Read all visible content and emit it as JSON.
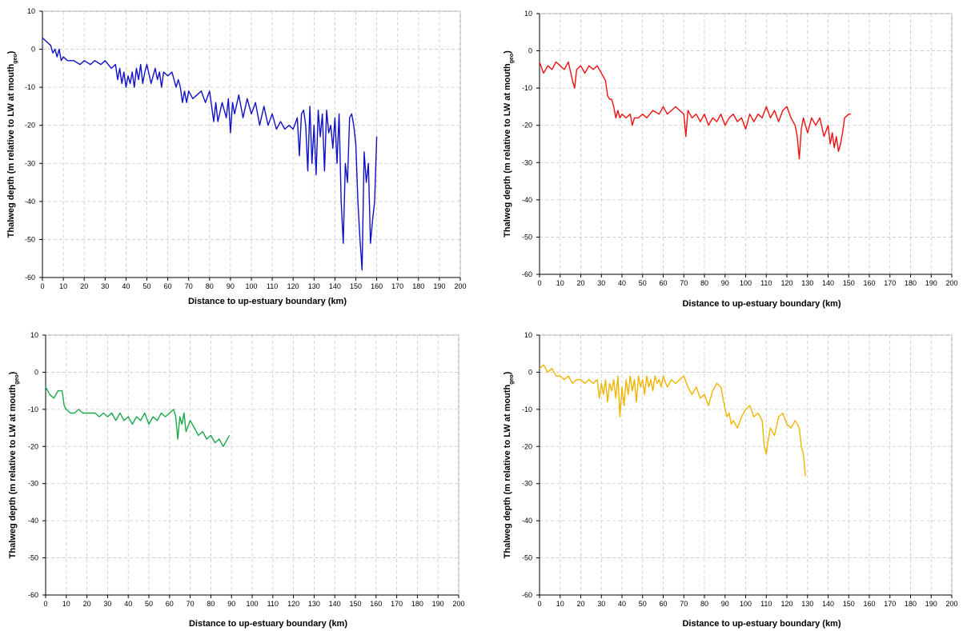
{
  "chart_data": [
    {
      "type": "line",
      "xlabel": "Distance to up-estuary  boundary (km)",
      "ylabel": "Thalweg depth (m relative to LW at mouth",
      "ylabel_sub": "geo",
      "xlim": [
        0,
        200
      ],
      "ylim": [
        -60,
        10
      ],
      "xticks": [
        "0",
        "10",
        "20",
        "30",
        "40",
        "50",
        "60",
        "70",
        "80",
        "90",
        "100",
        "110",
        "120",
        "130",
        "140",
        "150",
        "160",
        "170",
        "180",
        "190",
        "200"
      ],
      "yticks": [
        "10",
        "0",
        "-10",
        "-20",
        "-30",
        "-40",
        "-50",
        "-60"
      ],
      "grid": true,
      "color": "#1010c8",
      "series": [
        {
          "x": [
            0,
            2,
            4,
            5,
            6,
            7,
            8,
            9,
            10,
            12,
            15,
            18,
            20,
            23,
            25,
            28,
            30,
            33,
            35,
            36,
            37,
            38,
            39,
            40,
            41,
            42,
            43,
            44,
            45,
            46,
            47,
            48,
            49,
            50,
            52,
            54,
            55,
            56,
            57,
            58,
            60,
            62,
            64,
            65,
            66,
            67,
            68,
            69,
            70,
            72,
            74,
            76,
            78,
            80,
            81,
            82,
            83,
            84,
            86,
            88,
            89,
            90,
            91,
            92,
            94,
            96,
            98,
            100,
            102,
            104,
            106,
            108,
            110,
            112,
            114,
            116,
            118,
            120,
            122,
            123,
            124,
            125,
            126,
            127,
            128,
            129,
            130,
            131,
            132,
            133,
            134,
            135,
            136,
            137,
            138,
            139,
            140,
            141,
            142,
            143,
            144,
            145,
            146,
            147,
            148,
            149,
            150,
            151,
            152,
            153,
            154,
            155,
            156,
            157,
            158,
            159,
            160
          ],
          "y": [
            3,
            2,
            1,
            -1,
            0,
            -2,
            0,
            -3,
            -2,
            -3,
            -3,
            -4,
            -3,
            -4,
            -3,
            -4,
            -3,
            -5,
            -4,
            -8,
            -5,
            -9,
            -6,
            -10,
            -7,
            -9,
            -6,
            -10,
            -5,
            -8,
            -4,
            -9,
            -6,
            -4,
            -9,
            -5,
            -8,
            -6,
            -10,
            -6,
            -7,
            -6,
            -10,
            -8,
            -10,
            -14,
            -11,
            -14,
            -11,
            -13,
            -12,
            -11,
            -14,
            -11,
            -15,
            -19,
            -14,
            -19,
            -14,
            -18,
            -13,
            -22,
            -14,
            -17,
            -12,
            -18,
            -13,
            -17,
            -14,
            -20,
            -15,
            -20,
            -17,
            -21,
            -19,
            -21,
            -20,
            -21,
            -18,
            -28,
            -17,
            -16,
            -20,
            -32,
            -15,
            -30,
            -20,
            -33,
            -16,
            -23,
            -17,
            -32,
            -16,
            -22,
            -20,
            -26,
            -18,
            -30,
            -17,
            -40,
            -51,
            -30,
            -35,
            -18,
            -17,
            -20,
            -25,
            -40,
            -50,
            -58,
            -27,
            -35,
            -30,
            -51,
            -45,
            -40,
            -23
          ]
        }
      ]
    },
    {
      "type": "line",
      "xlabel": "Distance to up-estuary boundary (km)",
      "ylabel": "Thalweg depth (m relative to LW at mouth",
      "ylabel_sub": "geo",
      "xlim": [
        0,
        200
      ],
      "ylim": [
        -60,
        10
      ],
      "xticks": [
        "0",
        "10",
        "20",
        "30",
        "40",
        "50",
        "60",
        "70",
        "80",
        "90",
        "100",
        "110",
        "120",
        "130",
        "140",
        "150",
        "160",
        "170",
        "180",
        "190",
        "200"
      ],
      "yticks": [
        "10",
        "0",
        "-10",
        "-20",
        "-30",
        "-40",
        "-50",
        "-60"
      ],
      "grid": true,
      "color": "#ee1111",
      "series": [
        {
          "x": [
            0,
            2,
            4,
            6,
            8,
            10,
            12,
            14,
            16,
            17,
            18,
            20,
            22,
            24,
            26,
            28,
            30,
            32,
            33,
            34,
            35,
            36,
            37,
            38,
            39,
            40,
            42,
            44,
            45,
            46,
            48,
            50,
            52,
            55,
            58,
            60,
            62,
            64,
            66,
            68,
            70,
            71,
            72,
            74,
            76,
            78,
            80,
            82,
            84,
            86,
            88,
            90,
            92,
            94,
            96,
            98,
            100,
            102,
            104,
            106,
            108,
            110,
            112,
            114,
            116,
            118,
            120,
            122,
            124,
            125,
            126,
            127,
            128,
            130,
            132,
            134,
            136,
            138,
            140,
            141,
            142,
            143,
            144,
            145,
            146,
            147,
            148,
            150,
            151
          ],
          "y": [
            -3,
            -6,
            -4,
            -5,
            -3,
            -4,
            -5,
            -3,
            -8,
            -10,
            -5,
            -4,
            -6,
            -4,
            -5,
            -4,
            -6,
            -8,
            -12,
            -13,
            -13,
            -15,
            -18,
            -16,
            -18,
            -17,
            -18,
            -17,
            -20,
            -18,
            -18,
            -17,
            -18,
            -16,
            -17,
            -15,
            -17,
            -16,
            -15,
            -16,
            -17,
            -23,
            -16,
            -18,
            -17,
            -19,
            -17,
            -20,
            -18,
            -19,
            -17,
            -20,
            -18,
            -17,
            -19,
            -18,
            -21,
            -17,
            -19,
            -17,
            -18,
            -15,
            -18,
            -16,
            -19,
            -16,
            -15,
            -18,
            -20,
            -23,
            -29,
            -21,
            -18,
            -22,
            -18,
            -20,
            -18,
            -23,
            -20,
            -25,
            -22,
            -26,
            -23,
            -27,
            -25,
            -22,
            -18,
            -17,
            -17
          ]
        }
      ]
    },
    {
      "type": "line",
      "xlabel": "Distance to up-estuary boundary (km)",
      "ylabel": "Thalweg depth (m relative to LW at mouth",
      "ylabel_sub": "geo",
      "xlim": [
        0,
        200
      ],
      "ylim": [
        -60,
        10
      ],
      "xticks": [
        "0",
        "10",
        "20",
        "30",
        "40",
        "50",
        "60",
        "70",
        "80",
        "90",
        "100",
        "110",
        "120",
        "130",
        "140",
        "150",
        "160",
        "170",
        "180",
        "190",
        "200"
      ],
      "yticks": [
        "10",
        "0",
        "-10",
        "-20",
        "-30",
        "-40",
        "-50",
        "-60"
      ],
      "grid": true,
      "color": "#1aa84a",
      "series": [
        {
          "x": [
            0,
            2,
            4,
            6,
            8,
            9,
            10,
            12,
            14,
            16,
            18,
            20,
            22,
            24,
            26,
            28,
            30,
            32,
            34,
            36,
            38,
            40,
            42,
            44,
            46,
            48,
            50,
            52,
            54,
            56,
            58,
            60,
            62,
            63,
            64,
            65,
            66,
            67,
            68,
            70,
            72,
            74,
            76,
            78,
            80,
            82,
            84,
            86,
            88,
            89
          ],
          "y": [
            -4,
            -6,
            -7,
            -5,
            -5,
            -9,
            -10,
            -11,
            -11,
            -10,
            -11,
            -11,
            -11,
            -11,
            -12,
            -11,
            -12,
            -11,
            -13,
            -11,
            -13,
            -12,
            -14,
            -12,
            -13,
            -11,
            -14,
            -12,
            -13,
            -11,
            -12,
            -11,
            -10,
            -12,
            -18,
            -12,
            -14,
            -11,
            -16,
            -13,
            -15,
            -17,
            -16,
            -18,
            -17,
            -19,
            -18,
            -20,
            -18,
            -17
          ]
        }
      ]
    },
    {
      "type": "line",
      "xlabel": "Distance to up-estuary boundary (km)",
      "ylabel": "Thalweg depth (m relative to LW at mouth",
      "ylabel_sub": "geo",
      "xlim": [
        0,
        200
      ],
      "ylim": [
        -60,
        10
      ],
      "xticks": [
        "0",
        "10",
        "20",
        "30",
        "40",
        "50",
        "60",
        "70",
        "80",
        "90",
        "100",
        "110",
        "120",
        "130",
        "140",
        "150",
        "160",
        "170",
        "180",
        "190",
        "200"
      ],
      "yticks": [
        "10",
        "0",
        "-10",
        "-20",
        "-30",
        "-40",
        "-50",
        "-60"
      ],
      "grid": true,
      "color": "#f0b400",
      "series": [
        {
          "x": [
            0,
            2,
            4,
            6,
            8,
            10,
            12,
            14,
            16,
            18,
            20,
            22,
            24,
            26,
            28,
            29,
            30,
            31,
            32,
            33,
            34,
            35,
            36,
            37,
            38,
            39,
            40,
            41,
            42,
            43,
            44,
            45,
            46,
            47,
            48,
            49,
            50,
            51,
            52,
            53,
            54,
            55,
            56,
            57,
            58,
            59,
            60,
            62,
            64,
            66,
            68,
            70,
            72,
            74,
            76,
            78,
            80,
            82,
            84,
            86,
            88,
            90,
            91,
            92,
            93,
            94,
            96,
            98,
            100,
            102,
            104,
            106,
            108,
            109,
            110,
            111,
            112,
            114,
            116,
            118,
            120,
            122,
            124,
            126,
            127,
            128,
            129
          ],
          "y": [
            1,
            2,
            0,
            1,
            -1,
            -1,
            -2,
            -1,
            -3,
            -2,
            -2,
            -3,
            -2,
            -3,
            -2,
            -7,
            -3,
            -6,
            -2,
            -8,
            -3,
            -5,
            -2,
            -7,
            -1,
            -12,
            -4,
            -9,
            -2,
            -6,
            -1,
            -5,
            -2,
            -8,
            -1,
            -4,
            -2,
            -6,
            -1,
            -4,
            -2,
            -5,
            -1,
            -3,
            -2,
            -4,
            -1,
            -4,
            -2,
            -3,
            -2,
            -1,
            -4,
            -6,
            -4,
            -7,
            -6,
            -9,
            -5,
            -3,
            -4,
            -10,
            -12,
            -11,
            -14,
            -13,
            -15,
            -12,
            -10,
            -9,
            -12,
            -11,
            -13,
            -20,
            -22,
            -18,
            -15,
            -17,
            -12,
            -11,
            -14,
            -15,
            -13,
            -15,
            -20,
            -22,
            -28
          ]
        }
      ]
    }
  ]
}
